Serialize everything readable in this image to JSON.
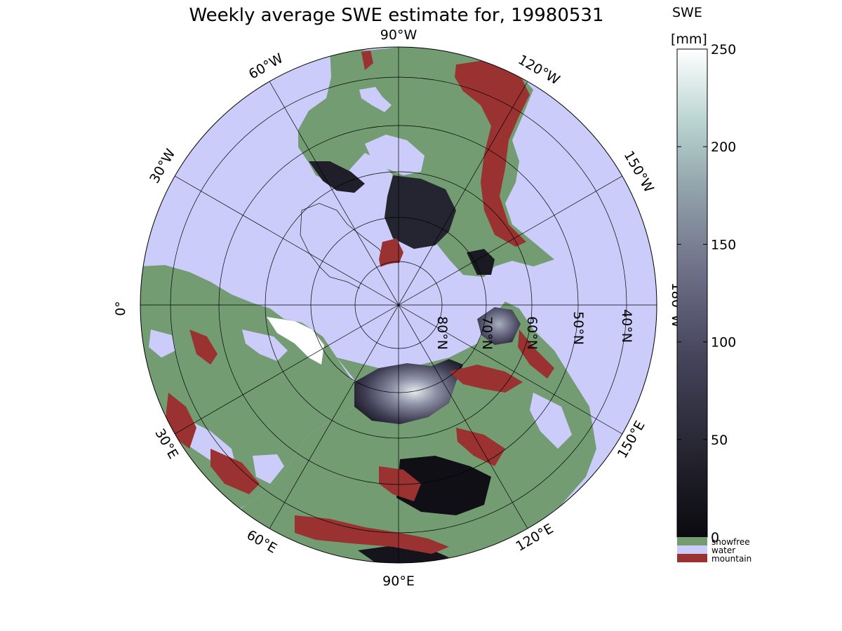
{
  "title": "Weekly average SWE estimate for, 19980531",
  "colorbar": {
    "label_top": "SWE",
    "label_unit": "[mm]",
    "ticks": [
      0,
      50,
      100,
      150,
      200,
      250
    ],
    "range": [
      0,
      250
    ],
    "gradient_colors": [
      "#0a0a0f",
      "#25242f",
      "#45445c",
      "#6f7189",
      "#93a5ac",
      "#b9d4d0",
      "#ffffff"
    ]
  },
  "legend": [
    {
      "label": "snowfree",
      "color": "#739c72"
    },
    {
      "label": "water",
      "color": "#ccccfb"
    },
    {
      "label": "mountain",
      "color": "#9a3231"
    }
  ],
  "longitude_labels": [
    "90°W",
    "120°W",
    "150°W",
    "180°W",
    "150°E",
    "120°E",
    "90°E",
    "60°E",
    "30°E",
    "0°",
    "30°W",
    "60°W"
  ],
  "latitude_labels": [
    "80°N",
    "70°N",
    "60°N",
    "50°N",
    "40°N"
  ],
  "map": {
    "projection": "north-polar stereographic",
    "colors": {
      "water": "#ccccfb",
      "snowfree": "#739c72",
      "mountain": "#9a3231",
      "snow_dark": "#1e1d26",
      "snow_mid": "#5a5a72",
      "snow_light": "#e6eeee"
    }
  }
}
